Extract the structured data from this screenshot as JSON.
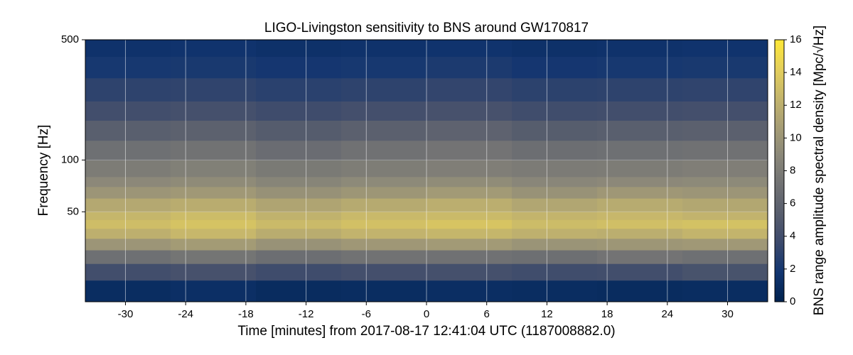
{
  "chart_data": {
    "type": "spectrogram",
    "title": "LIGO-Livingston sensitivity to BNS around GW170817",
    "x_label": "Time [minutes] from 2017-08-17 12:41:04 UTC (1187008882.0)",
    "y_label": "Frequency [Hz]",
    "colorbar_label": "BNS range amplitude spectral density [Mpc/√Hz]",
    "xlim": [
      -34,
      34
    ],
    "xticks": [
      -30,
      -24,
      -18,
      -12,
      -6,
      0,
      6,
      12,
      18,
      24,
      30
    ],
    "ylim": [
      15,
      500
    ],
    "yticks": [
      50,
      100,
      500
    ],
    "log_y": true,
    "grid": true,
    "clim": [
      0,
      16
    ],
    "cticks": [
      0,
      2,
      4,
      6,
      8,
      10,
      12,
      14,
      16
    ],
    "colormap": [
      "#00224e",
      "#123570",
      "#3b496c",
      "#575d6d",
      "#707173",
      "#8a8779",
      "#a69d75",
      "#c4b56c",
      "#e4cf5b",
      "#fee838"
    ],
    "time_bins": [
      -34,
      -25.5,
      -17,
      -8.5,
      0,
      8.5,
      17,
      25.5,
      34
    ],
    "frequency_bins": [
      15,
      20,
      25,
      30,
      35,
      40,
      45,
      50,
      60,
      70,
      80,
      100,
      130,
      170,
      220,
      300,
      400,
      500
    ],
    "z": [
      [
        1,
        1.2,
        0.9,
        1,
        1.1,
        1,
        0.9,
        1
      ],
      [
        4,
        4.3,
        3.8,
        4.1,
        4.2,
        3.9,
        4,
        4.4
      ],
      [
        7,
        7.4,
        6.8,
        7.2,
        7.1,
        6.9,
        7.3,
        7
      ],
      [
        10,
        10.5,
        9.8,
        10.2,
        10.4,
        9.9,
        10.1,
        10.3
      ],
      [
        12,
        12.6,
        11.8,
        12.3,
        12.5,
        12.1,
        11.9,
        12.4
      ],
      [
        13,
        13.4,
        12.8,
        13.2,
        13.5,
        12.9,
        13.1,
        13.3
      ],
      [
        12.5,
        12.9,
        12.2,
        12.7,
        12.8,
        12.4,
        12.6,
        12.3
      ],
      [
        11.5,
        11.8,
        11.2,
        11.6,
        11.9,
        11.3,
        11.7,
        11.4
      ],
      [
        10,
        10.3,
        9.7,
        10.1,
        10.4,
        9.8,
        10.2,
        10
      ],
      [
        9,
        9.2,
        8.7,
        9.1,
        9.3,
        8.8,
        9,
        9.1
      ],
      [
        8,
        8.3,
        7.8,
        8.1,
        8.2,
        7.9,
        8,
        8.2
      ],
      [
        7,
        7.2,
        6.7,
        7.1,
        7.3,
        6.8,
        7,
        7.1
      ],
      [
        5.5,
        5.7,
        5.2,
        5.6,
        5.8,
        5.3,
        5.5,
        5.6
      ],
      [
        4,
        4.2,
        3.8,
        4.1,
        4.3,
        3.9,
        4,
        4.1
      ],
      [
        3,
        3.1,
        2.8,
        3,
        3.2,
        2.9,
        3,
        3.1
      ],
      [
        2,
        2.1,
        1.9,
        2,
        2.2,
        1.9,
        2,
        2.1
      ],
      [
        1.5,
        1.6,
        1.4,
        1.5,
        1.6,
        1.4,
        1.5,
        1.6
      ]
    ]
  }
}
